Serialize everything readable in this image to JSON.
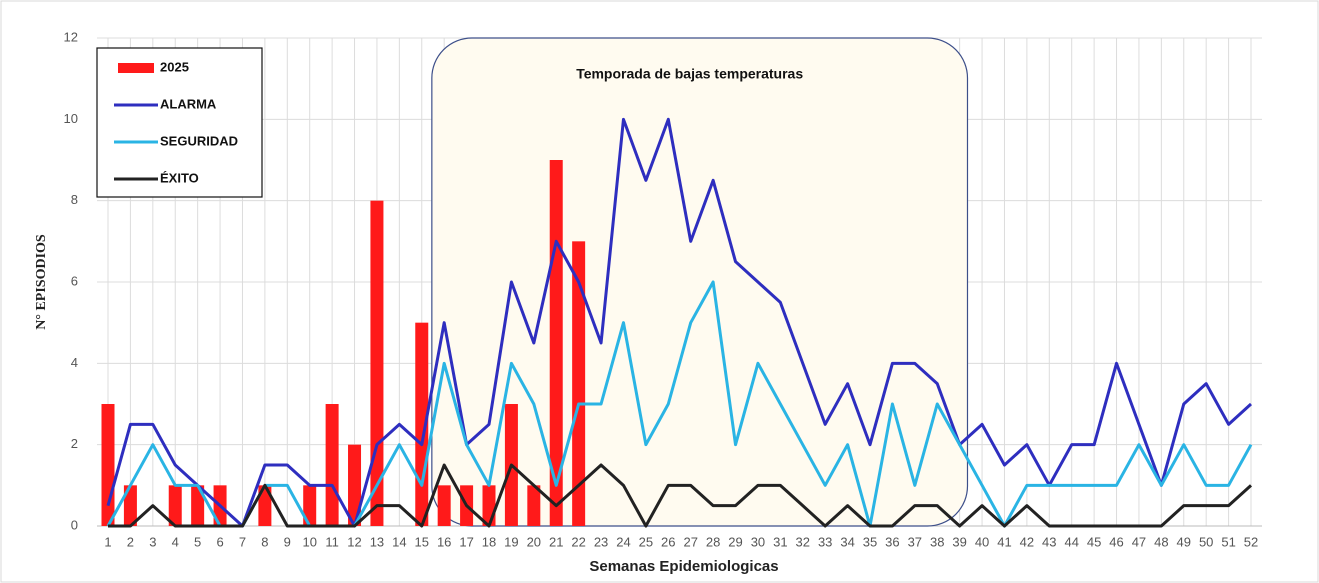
{
  "chart_data": {
    "type": "bar",
    "annotation": "Temporada de bajas temperaturas",
    "xlabel": "Semanas Epidemiologicas",
    "ylabel": "N° EPISODIOS",
    "categories": [
      "1",
      "2",
      "3",
      "4",
      "5",
      "6",
      "7",
      "8",
      "9",
      "10",
      "11",
      "12",
      "13",
      "14",
      "15",
      "16",
      "17",
      "18",
      "19",
      "20",
      "21",
      "22",
      "23",
      "24",
      "25",
      "26",
      "27",
      "28",
      "29",
      "30",
      "31",
      "32",
      "33",
      "34",
      "35",
      "36",
      "37",
      "38",
      "39",
      "40",
      "41",
      "42",
      "43",
      "44",
      "45",
      "46",
      "47",
      "48",
      "49",
      "50",
      "51",
      "52"
    ],
    "ylim": [
      0,
      12
    ],
    "yticks": [
      0,
      2,
      4,
      6,
      8,
      10,
      12
    ],
    "grid": true,
    "legend": "upper left",
    "series": [
      {
        "name": "2025",
        "type": "bar",
        "color": "#ff1a1a",
        "values": [
          3,
          1,
          null,
          1,
          1,
          1,
          null,
          1,
          null,
          1,
          3,
          2,
          8,
          null,
          5,
          1,
          1,
          1,
          3,
          1,
          9,
          7,
          null,
          null,
          null,
          null,
          null,
          null,
          null,
          null,
          null,
          null,
          null,
          null,
          null,
          null,
          null,
          null,
          null,
          null,
          null,
          null,
          null,
          null,
          null,
          null,
          null,
          null,
          null,
          null,
          null,
          null
        ]
      },
      {
        "name": "ALARMA",
        "type": "line",
        "color": "#2e2ebf",
        "values": [
          0.5,
          2.5,
          2.5,
          1.5,
          1,
          0.5,
          0,
          1.5,
          1.5,
          1,
          1,
          0,
          2,
          2.5,
          2,
          5,
          2,
          2.5,
          6,
          4.5,
          7,
          6,
          4.5,
          10,
          8.5,
          10,
          7,
          8.5,
          6.5,
          6,
          5.5,
          4,
          2.5,
          3.5,
          2,
          4,
          4,
          3.5,
          2,
          2.5,
          1.5,
          2,
          1,
          2,
          2,
          4,
          2.5,
          1,
          3,
          3.5,
          2.5,
          3
        ]
      },
      {
        "name": "SEGURIDAD",
        "type": "line",
        "color": "#2ab4e4",
        "values": [
          0,
          1,
          2,
          1,
          1,
          0,
          0,
          1,
          1,
          0,
          0,
          0,
          1,
          2,
          1,
          4,
          2,
          1,
          4,
          3,
          1,
          3,
          3,
          5,
          2,
          3,
          5,
          6,
          2,
          4,
          3,
          2,
          1,
          2,
          0,
          3,
          1,
          3,
          2,
          1,
          0,
          1,
          1,
          1,
          1,
          1,
          2,
          1,
          2,
          1,
          1,
          2
        ]
      },
      {
        "name": "ÉXITO",
        "type": "line",
        "color": "#222222",
        "values": [
          0,
          0,
          0.5,
          0,
          0,
          0,
          0,
          1,
          0,
          0,
          0,
          0,
          0.5,
          0.5,
          0,
          1.5,
          0.5,
          0,
          1.5,
          1,
          0.5,
          1,
          1.5,
          1,
          0,
          1,
          1,
          0.5,
          0.5,
          1,
          1,
          0.5,
          0,
          0.5,
          0,
          0,
          0.5,
          0.5,
          0,
          0.5,
          0,
          0.5,
          0,
          0,
          0,
          0,
          0,
          0,
          0.5,
          0.5,
          0.5,
          1
        ]
      }
    ]
  }
}
